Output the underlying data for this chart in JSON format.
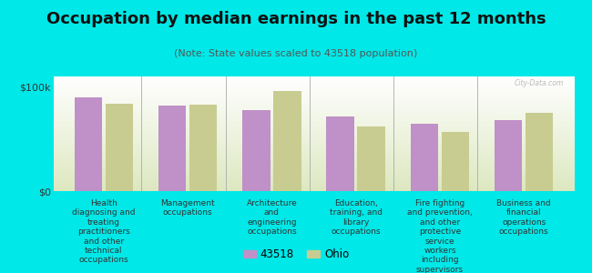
{
  "title": "Occupation by median earnings in the past 12 months",
  "subtitle": "(Note: State values scaled to 43518 population)",
  "background_color": "#00e8e8",
  "plot_bg_bottom": "#dde8c0",
  "plot_bg_top": "#f8fff8",
  "bar_color_43518": "#c090c8",
  "bar_color_ohio": "#c8cc90",
  "categories": [
    "Health\ndiagnosing and\ntreating\npractitioners\nand other\ntechnical\noccupations",
    "Management\noccupations",
    "Architecture\nand\nengineering\noccupations",
    "Education,\ntraining, and\nlibrary\noccupations",
    "Fire fighting\nand prevention,\nand other\nprotective\nservice\nworkers\nincluding\nsupervisors",
    "Business and\nfinancial\noperations\noccupations"
  ],
  "values_43518": [
    90000,
    82000,
    78000,
    72000,
    65000,
    68000
  ],
  "values_ohio": [
    84000,
    83000,
    96000,
    62000,
    57000,
    75000
  ],
  "ylim": [
    0,
    110000
  ],
  "yticks": [
    0,
    100000
  ],
  "ytick_labels": [
    "$0",
    "$100k"
  ],
  "legend_43518": "43518",
  "legend_ohio": "Ohio",
  "title_fontsize": 13,
  "subtitle_fontsize": 8,
  "ylabel_fontsize": 8,
  "cat_fontsize": 6.5
}
